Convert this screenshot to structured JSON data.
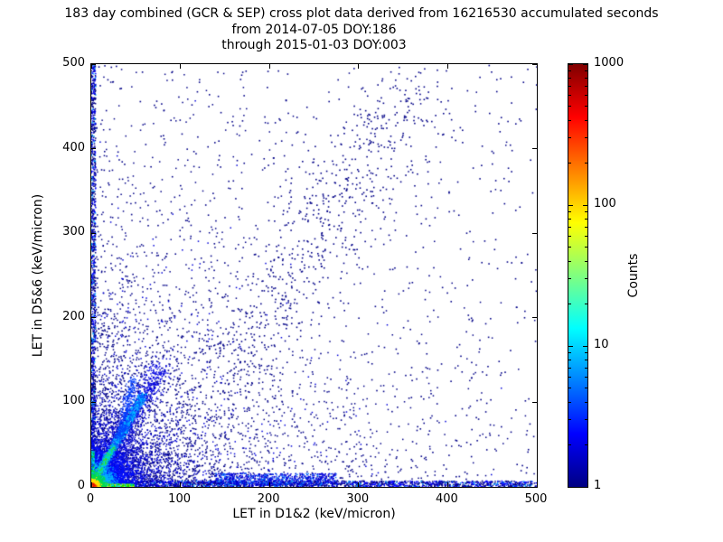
{
  "figure": {
    "background": "#ffffff",
    "axis_color": "#000000"
  },
  "chart_data": {
    "type": "scatter",
    "title_lines": [
      "183 day combined (GCR & SEP) cross plot data derived from 16216530 accumulated seconds",
      "from 2014-07-05 DOY:186",
      "through 2015-01-03 DOY:003"
    ],
    "xlabel": "LET in D1&2 (keV/micron)",
    "ylabel": "LET in D5&6 (keV/micron)",
    "xlim": [
      0,
      500
    ],
    "ylim": [
      0,
      500
    ],
    "xticks": [
      0,
      100,
      200,
      300,
      400,
      500
    ],
    "yticks": [
      0,
      100,
      200,
      300,
      400,
      500
    ],
    "grid": false,
    "colorbar": {
      "label": "Counts",
      "scale": "log",
      "range": [
        1,
        1000
      ],
      "ticks": [
        1,
        10,
        100,
        1000
      ],
      "colormap": "jet",
      "stops": [
        [
          "#000083",
          0
        ],
        [
          "#0000ff",
          0.125
        ],
        [
          "#00ffff",
          0.375
        ],
        [
          "#ffff00",
          0.625
        ],
        [
          "#ff0000",
          0.875
        ],
        [
          "#800000",
          1
        ]
      ]
    },
    "seed": 20140705,
    "features": [
      {
        "id": "uniform-sprinkle",
        "type": "uniform",
        "n": 750,
        "x": [
          0,
          500
        ],
        "y": [
          0,
          500
        ],
        "size": 1.6,
        "colors": [
          [
            "#000087",
            1
          ]
        ]
      },
      {
        "id": "exp-scatter",
        "type": "exp2d",
        "n": 3000,
        "scale_x": 85,
        "scale_y": 85,
        "size": 1.5,
        "colors": [
          [
            "#000087",
            0.8
          ],
          [
            "#0000d8",
            0.2
          ]
        ]
      },
      {
        "id": "mid-scatter",
        "type": "exp2d",
        "n": 900,
        "scale_x": 190,
        "scale_y": 190,
        "size": 1.5,
        "colors": [
          [
            "#000087",
            1
          ]
        ]
      },
      {
        "id": "diagonal-band",
        "type": "line",
        "n": 620,
        "x1": 145,
        "y1": 115,
        "x2": 355,
        "y2": 475,
        "jitter": 28,
        "size": 1.6,
        "colors": [
          [
            "#000087",
            1
          ]
        ]
      },
      {
        "id": "left-column",
        "type": "uniform",
        "n": 1000,
        "x": [
          0,
          5
        ],
        "y": [
          0,
          500
        ],
        "size": 1.5,
        "colors": [
          [
            "#000087",
            0.55
          ],
          [
            "#0000ff",
            0.3
          ],
          [
            "#00a0ff",
            0.15
          ]
        ]
      },
      {
        "id": "bottom-band",
        "type": "uniform",
        "n": 1700,
        "x": [
          0,
          500
        ],
        "y": [
          0,
          7
        ],
        "size": 1.5,
        "colors": [
          [
            "#000087",
            0.55
          ],
          [
            "#0000ff",
            0.35
          ],
          [
            "#00a0ff",
            0.1
          ]
        ]
      },
      {
        "id": "bottom-clump",
        "type": "uniform",
        "n": 800,
        "x": [
          140,
          275
        ],
        "y": [
          2,
          16
        ],
        "size": 1.4,
        "colors": [
          [
            "#0000d8",
            0.75
          ],
          [
            "#0070ff",
            0.25
          ]
        ]
      },
      {
        "id": "origin-halo",
        "type": "gauss",
        "n": 1800,
        "cx": 3,
        "cy": 3,
        "sx": 40,
        "sy": 40,
        "size": 1.4,
        "colors": [
          [
            "#0000c8",
            1
          ]
        ]
      },
      {
        "id": "origin-blue",
        "type": "gauss",
        "n": 2600,
        "cx": 3,
        "cy": 3,
        "sx": 20,
        "sy": 20,
        "size": 1.4,
        "colors": [
          [
            "#0010ff",
            1
          ]
        ]
      },
      {
        "id": "proton-streak-halo",
        "type": "line",
        "n": 900,
        "x1": 2,
        "y1": 3,
        "x2": 78,
        "y2": 142,
        "jitter": 6.5,
        "size": 1.4,
        "colors": [
          [
            "#0000e0",
            1
          ]
        ]
      },
      {
        "id": "origin-cyan",
        "type": "gauss",
        "n": 2000,
        "cx": 2.5,
        "cy": 2.5,
        "sx": 10,
        "sy": 10,
        "size": 1.3,
        "colors": [
          [
            "#00b0ff",
            1
          ]
        ]
      },
      {
        "id": "proton-streak-core",
        "type": "line",
        "n": 1500,
        "x1": 2,
        "y1": 3,
        "x2": 58,
        "y2": 108,
        "jitter": 2.4,
        "size": 1.3,
        "colors": [
          [
            "#00c0ff",
            0.5
          ],
          [
            "#0050ff",
            0.5
          ]
        ]
      },
      {
        "id": "streak-bright",
        "type": "line",
        "n": 450,
        "x1": 2,
        "y1": 4,
        "x2": 25,
        "y2": 48,
        "jitter": 1.6,
        "size": 1.3,
        "colors": [
          [
            "#00e0b0",
            0.4
          ],
          [
            "#40e000",
            0.3
          ],
          [
            "#00c0ff",
            0.3
          ]
        ]
      },
      {
        "id": "streak-spur",
        "type": "line",
        "n": 300,
        "x1": 32,
        "y1": 58,
        "x2": 47,
        "y2": 128,
        "jitter": 2.8,
        "size": 1.3,
        "colors": [
          [
            "#0040ff",
            1
          ]
        ]
      },
      {
        "id": "axis-smear-h",
        "type": "uniform",
        "n": 500,
        "x": [
          0,
          48
        ],
        "y": [
          0,
          3
        ],
        "size": 1.4,
        "colors": [
          [
            "#00e000",
            0.4
          ],
          [
            "#00d0ff",
            0.3
          ],
          [
            "#ffe000",
            0.3
          ]
        ]
      },
      {
        "id": "axis-smear-v",
        "type": "uniform",
        "n": 380,
        "x": [
          0,
          3
        ],
        "y": [
          0,
          42
        ],
        "size": 1.4,
        "colors": [
          [
            "#00d0ff",
            0.45
          ],
          [
            "#00e000",
            0.35
          ],
          [
            "#0040ff",
            0.2
          ]
        ]
      },
      {
        "id": "origin-green",
        "type": "gauss",
        "n": 1300,
        "cx": 2,
        "cy": 2,
        "sx": 5.5,
        "sy": 5.5,
        "size": 1.3,
        "colors": [
          [
            "#00dc50",
            1
          ]
        ]
      },
      {
        "id": "origin-yellow",
        "type": "gauss",
        "n": 700,
        "cx": 1.5,
        "cy": 1.5,
        "sx": 3,
        "sy": 3,
        "size": 1.3,
        "colors": [
          [
            "#ffe000",
            1
          ]
        ]
      },
      {
        "id": "origin-red",
        "type": "gauss",
        "n": 280,
        "cx": 1,
        "cy": 1,
        "sx": 1.5,
        "sy": 1.5,
        "size": 1.3,
        "colors": [
          [
            "#ff6000",
            0.6
          ],
          [
            "#e00000",
            0.4
          ]
        ]
      }
    ]
  }
}
